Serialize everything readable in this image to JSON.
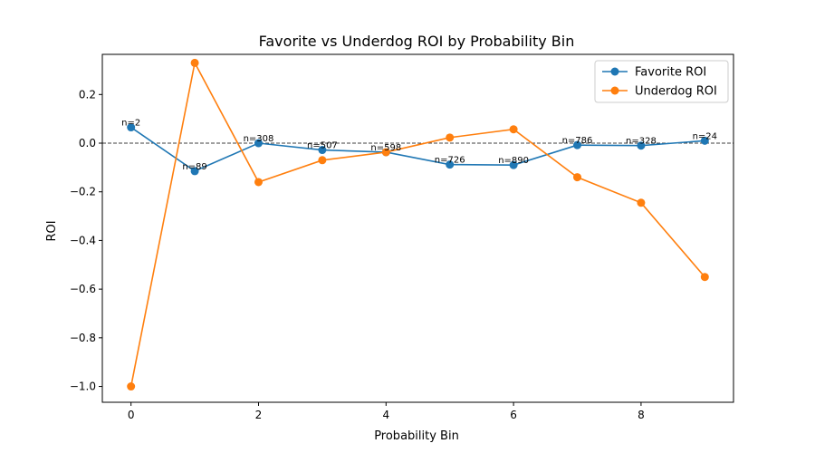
{
  "chart_data": {
    "type": "line",
    "title": "Favorite vs Underdog ROI by Probability Bin",
    "xlabel": "Probability Bin",
    "ylabel": "ROI",
    "xlim": [
      -0.45,
      9.45
    ],
    "ylim": [
      -1.065,
      0.365
    ],
    "xticks": [
      0,
      2,
      4,
      6,
      8
    ],
    "yticks": [
      0.2,
      0.0,
      -0.2,
      -0.4,
      -0.6,
      -0.8,
      -1.0
    ],
    "ytick_labels": [
      "0.2",
      "0.0",
      "−0.2",
      "−0.4",
      "−0.6",
      "−0.8",
      "−1.0"
    ],
    "x": [
      0,
      1,
      2,
      3,
      4,
      5,
      6,
      7,
      8,
      9
    ],
    "series": [
      {
        "name": "Favorite ROI",
        "color": "#1f77b4",
        "marker": "circle",
        "values": [
          0.065,
          -0.115,
          0.0,
          -0.028,
          -0.037,
          -0.088,
          -0.09,
          -0.008,
          -0.01,
          0.01
        ]
      },
      {
        "name": "Underdog ROI",
        "color": "#ff7f0e",
        "marker": "circle",
        "values": [
          -1.0,
          0.33,
          -0.16,
          -0.07,
          -0.037,
          0.023,
          0.057,
          -0.14,
          -0.245,
          -0.55
        ]
      }
    ],
    "reference_line": {
      "y": 0.0,
      "style": "dashed",
      "color": "#000000"
    },
    "annotations": [
      {
        "text": "n=2",
        "x": 0,
        "y": 0.065
      },
      {
        "text": "n=89",
        "x": 1,
        "y": -0.115
      },
      {
        "text": "n=308",
        "x": 2,
        "y": 0.0
      },
      {
        "text": "n=507",
        "x": 3,
        "y": -0.028
      },
      {
        "text": "n=598",
        "x": 4,
        "y": -0.037
      },
      {
        "text": "n=726",
        "x": 5,
        "y": -0.088
      },
      {
        "text": "n=890",
        "x": 6,
        "y": -0.09
      },
      {
        "text": "n=786",
        "x": 7,
        "y": -0.008
      },
      {
        "text": "n=328",
        "x": 8,
        "y": -0.01
      },
      {
        "text": "n=24",
        "x": 9,
        "y": 0.01
      }
    ],
    "legend": {
      "position": "top-right"
    },
    "grid": false
  }
}
